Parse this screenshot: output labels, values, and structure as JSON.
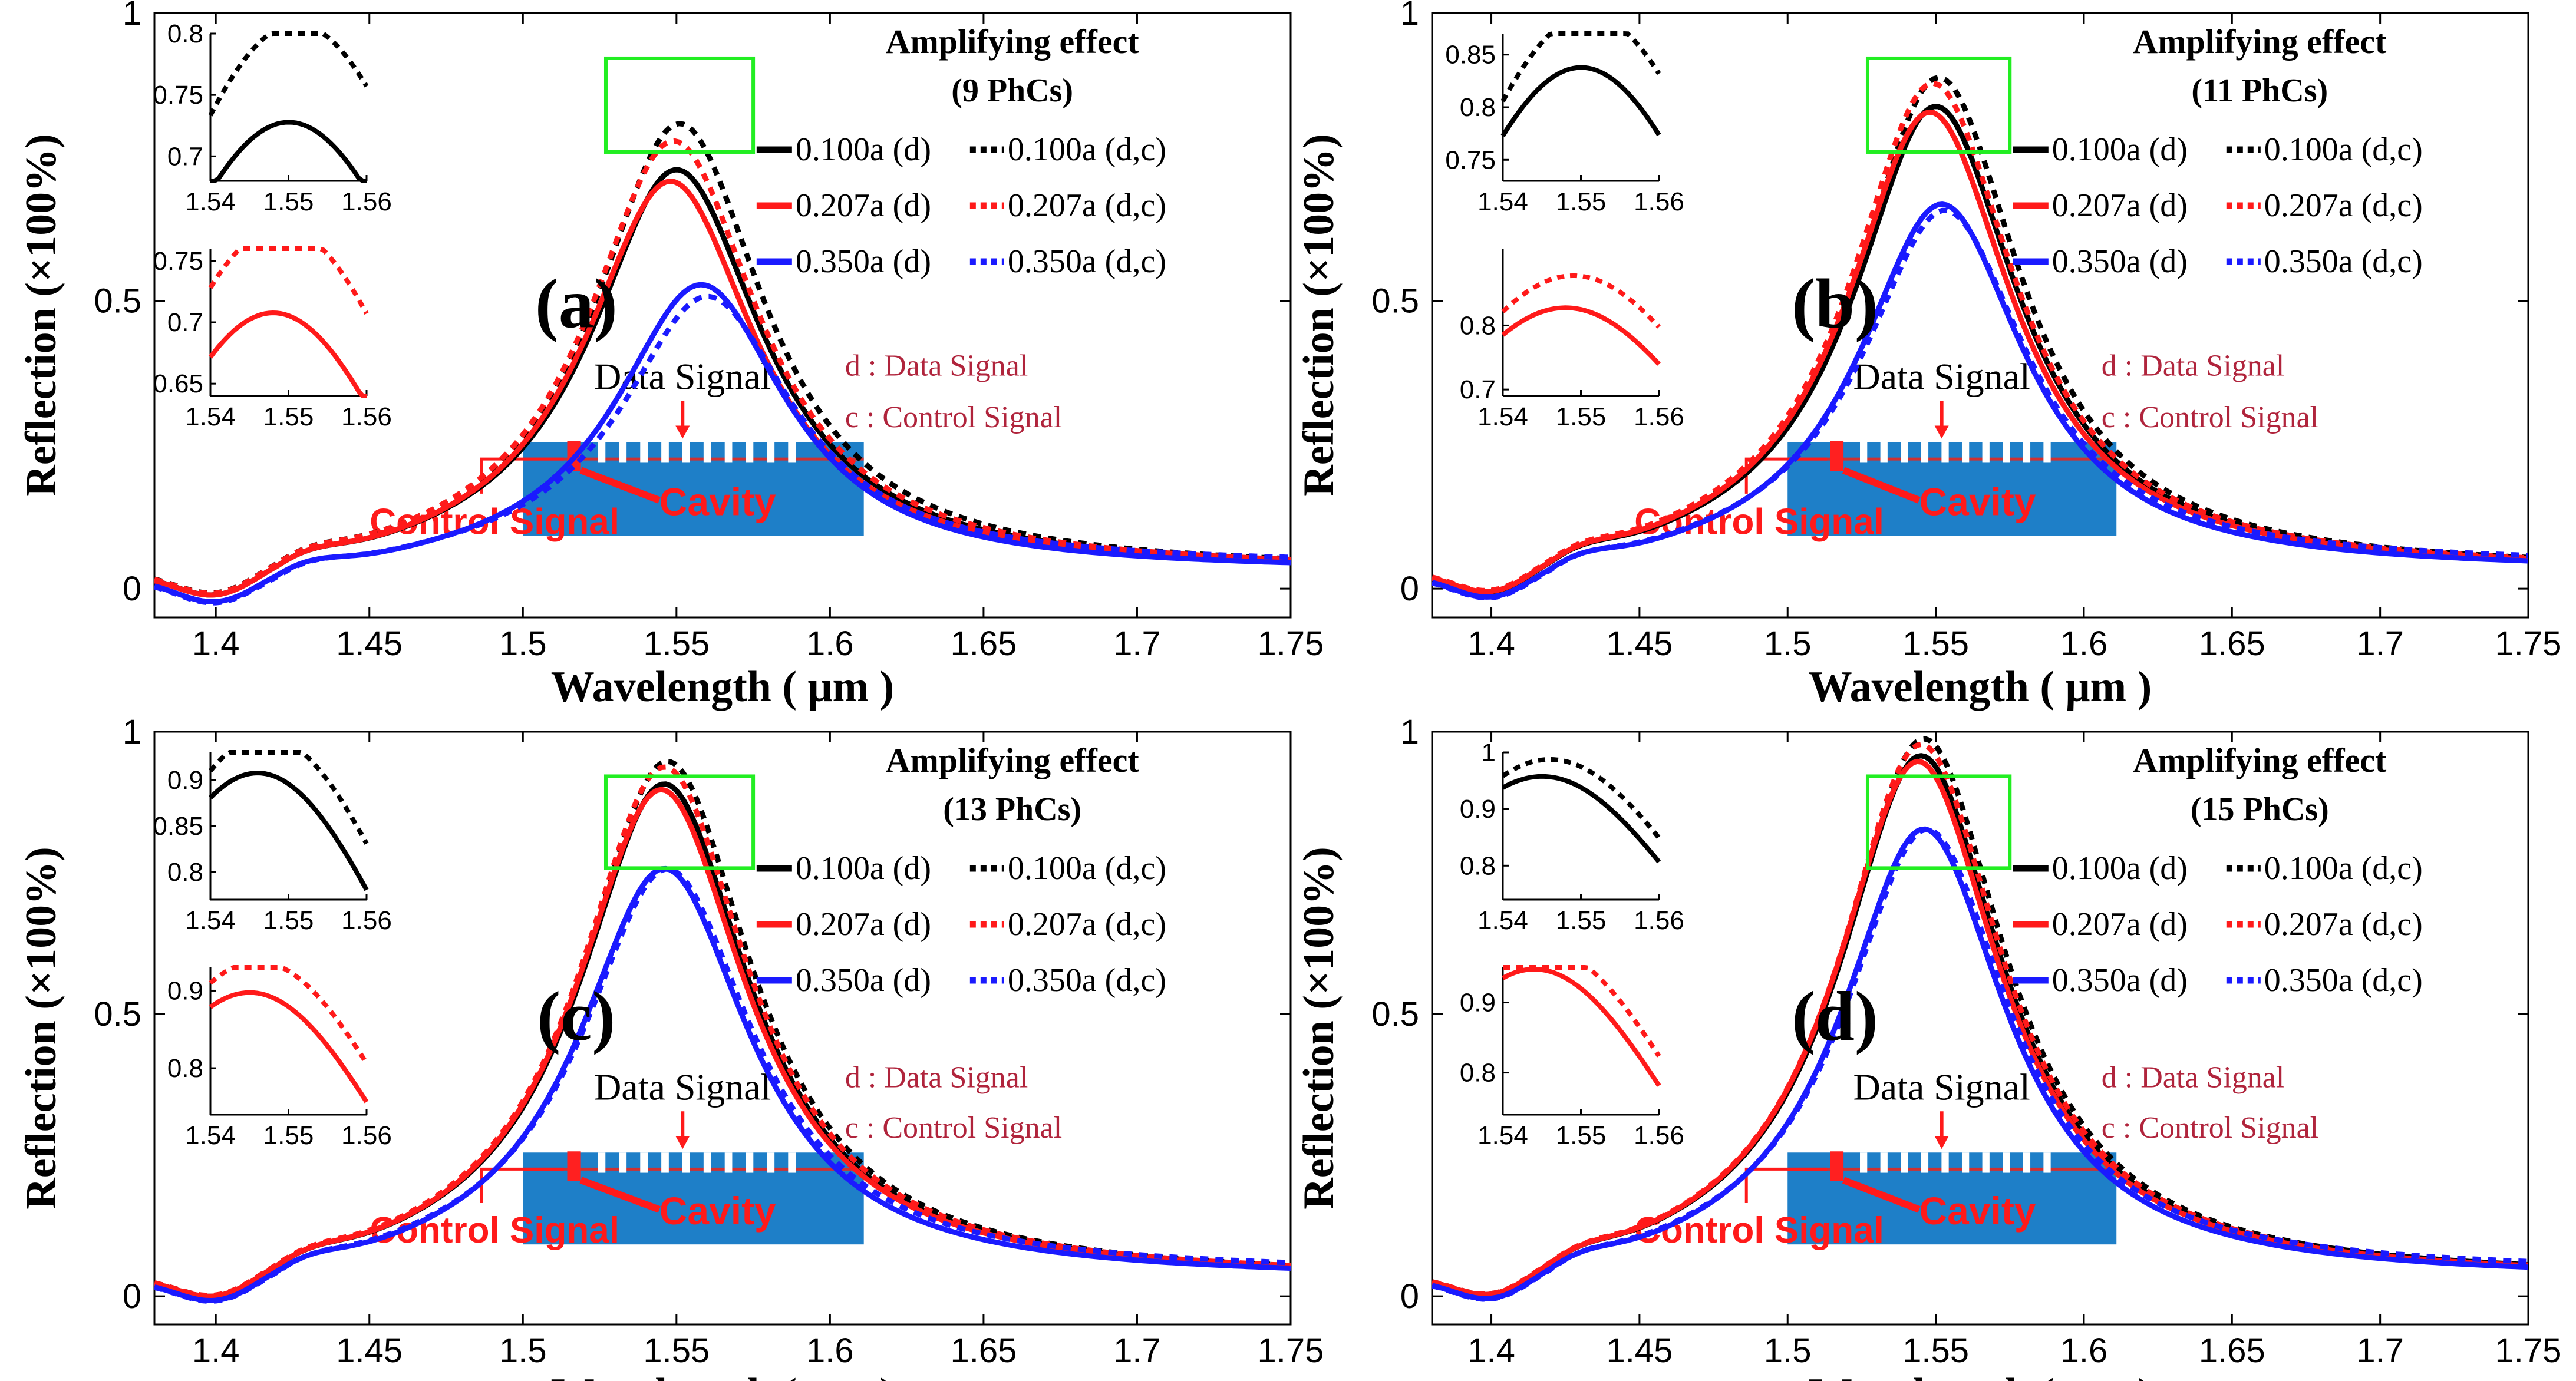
{
  "common": {
    "xlabel": "Wavelength ( μm )",
    "ylabel": "Reflection (×100%)",
    "xlim": [
      1.38,
      1.75
    ],
    "ylim": [
      -0.05,
      1.0
    ],
    "xticks": [
      1.4,
      1.45,
      1.5,
      1.55,
      1.6,
      1.65,
      1.7,
      1.75
    ],
    "xtick_labels": [
      "1.4",
      "1.45",
      "1.5",
      "1.55",
      "1.6",
      "1.65",
      "1.7",
      "1.75"
    ],
    "yticks": [
      0,
      0.5,
      1
    ],
    "ytick_labels": [
      "0",
      "0.5",
      "1"
    ],
    "note_d": "d : Data Signal",
    "note_c": "c : Control Signal",
    "schematic": {
      "data_signal": "Data Signal",
      "control_signal": "Control Signal",
      "cavity": "Cavity"
    },
    "inset_xticks": [
      1.54,
      1.55,
      1.56
    ],
    "inset_xtick_labels": [
      "1.54",
      "1.55",
      "1.56"
    ],
    "colors": {
      "black": "#000000",
      "red": "#ff1a1a",
      "blue": "#1a1aff",
      "box": "#22ee22",
      "note": "#b0243c",
      "device": "#1e7fc8"
    }
  },
  "chart_data": [
    {
      "type": "line",
      "id": "a",
      "panel_label": "(a)",
      "title": "Amplifying effect",
      "subtitle": "(9 PhCs)",
      "series": [
        {
          "name": "0.100a (d)",
          "label": "0.100a (d)",
          "color": "black",
          "dash": false,
          "peak": 0.7,
          "center": 1.55,
          "base": 0.03
        },
        {
          "name": "0.100a (d,c)",
          "label": "0.100a (d,c)",
          "color": "black",
          "dash": true,
          "peak": 0.78,
          "center": 1.551,
          "base": 0.03
        },
        {
          "name": "0.207a (d)",
          "label": "0.207a (d)",
          "color": "red",
          "dash": false,
          "peak": 0.68,
          "center": 1.548,
          "base": 0.03
        },
        {
          "name": "0.207a (d,c)",
          "label": "0.207a (d,c)",
          "color": "red",
          "dash": true,
          "peak": 0.75,
          "center": 1.549,
          "base": 0.03
        },
        {
          "name": "0.350a (d)",
          "label": "0.350a (d)",
          "color": "blue",
          "dash": false,
          "peak": 0.5,
          "center": 1.558,
          "base": 0.03
        },
        {
          "name": "0.350a (d,c)",
          "label": "0.350a (d,c)",
          "color": "blue",
          "dash": true,
          "peak": 0.47,
          "center": 1.56,
          "base": 0.04
        }
      ],
      "insets": [
        {
          "ylim": [
            0.68,
            0.8
          ],
          "yticks": [
            0.7,
            0.75,
            0.8
          ],
          "ytick_labels": [
            "0.7",
            "0.75",
            "0.8"
          ]
        },
        {
          "ylim": [
            0.64,
            0.76
          ],
          "yticks": [
            0.65,
            0.7,
            0.75
          ],
          "ytick_labels": [
            "0.65",
            "0.7",
            "0.75"
          ]
        }
      ]
    },
    {
      "type": "line",
      "id": "b",
      "panel_label": "(b)",
      "title": "Amplifying effect",
      "subtitle": "(11 PhCs)",
      "series": [
        {
          "name": "0.100a (d)",
          "label": "0.100a (d)",
          "color": "black",
          "dash": false,
          "peak": 0.81,
          "center": 1.55,
          "base": 0.03
        },
        {
          "name": "0.100a (d,c)",
          "label": "0.100a (d,c)",
          "color": "black",
          "dash": true,
          "peak": 0.86,
          "center": 1.551,
          "base": 0.03
        },
        {
          "name": "0.207a (d)",
          "label": "0.207a (d)",
          "color": "red",
          "dash": false,
          "peak": 0.8,
          "center": 1.548,
          "base": 0.03
        },
        {
          "name": "0.207a (d,c)",
          "label": "0.207a (d,c)",
          "color": "red",
          "dash": true,
          "peak": 0.85,
          "center": 1.549,
          "base": 0.03
        },
        {
          "name": "0.350a (d)",
          "label": "0.350a (d)",
          "color": "blue",
          "dash": false,
          "peak": 0.64,
          "center": 1.552,
          "base": 0.03
        },
        {
          "name": "0.350a (d,c)",
          "label": "0.350a (d,c)",
          "color": "blue",
          "dash": true,
          "peak": 0.62,
          "center": 1.553,
          "base": 0.04
        }
      ],
      "insets": [
        {
          "ylim": [
            0.73,
            0.87
          ],
          "yticks": [
            0.75,
            0.8,
            0.85
          ],
          "ytick_labels": [
            "0.75",
            "0.8",
            "0.85"
          ]
        },
        {
          "ylim": [
            0.69,
            0.92
          ],
          "yticks": [
            0.7,
            0.8
          ],
          "ytick_labels": [
            "0.7",
            "0.8"
          ]
        }
      ]
    },
    {
      "type": "line",
      "id": "c",
      "panel_label": "(c)",
      "title": "Amplifying effect",
      "subtitle": "(13 PhCs)",
      "series": [
        {
          "name": "0.100a (d)",
          "label": "0.100a (d)",
          "color": "black",
          "dash": false,
          "peak": 0.88,
          "center": 1.546,
          "base": 0.03
        },
        {
          "name": "0.100a (d,c)",
          "label": "0.100a (d,c)",
          "color": "black",
          "dash": true,
          "peak": 0.92,
          "center": 1.547,
          "base": 0.03
        },
        {
          "name": "0.207a (d)",
          "label": "0.207a (d)",
          "color": "red",
          "dash": false,
          "peak": 0.87,
          "center": 1.545,
          "base": 0.03
        },
        {
          "name": "0.207a (d,c)",
          "label": "0.207a (d,c)",
          "color": "red",
          "dash": true,
          "peak": 0.91,
          "center": 1.546,
          "base": 0.03
        },
        {
          "name": "0.350a (d)",
          "label": "0.350a (d)",
          "color": "blue",
          "dash": false,
          "peak": 0.73,
          "center": 1.546,
          "base": 0.03
        },
        {
          "name": "0.350a (d,c)",
          "label": "0.350a (d,c)",
          "color": "blue",
          "dash": true,
          "peak": 0.72,
          "center": 1.547,
          "base": 0.04
        }
      ],
      "insets": [
        {
          "ylim": [
            0.77,
            0.93
          ],
          "yticks": [
            0.8,
            0.85,
            0.9
          ],
          "ytick_labels": [
            "0.8",
            "0.85",
            "0.9"
          ]
        },
        {
          "ylim": [
            0.74,
            0.93
          ],
          "yticks": [
            0.8,
            0.9
          ],
          "ytick_labels": [
            "0.8",
            "0.9"
          ]
        }
      ]
    },
    {
      "type": "line",
      "id": "d",
      "panel_label": "(d)",
      "title": "Amplifying effect",
      "subtitle": "(15 PhCs)",
      "series": [
        {
          "name": "0.100a (d)",
          "label": "0.100a (d)",
          "color": "black",
          "dash": false,
          "peak": 0.93,
          "center": 1.545,
          "base": 0.03
        },
        {
          "name": "0.100a (d,c)",
          "label": "0.100a (d,c)",
          "color": "black",
          "dash": true,
          "peak": 0.96,
          "center": 1.546,
          "base": 0.03
        },
        {
          "name": "0.207a (d)",
          "label": "0.207a (d)",
          "color": "red",
          "dash": false,
          "peak": 0.92,
          "center": 1.544,
          "base": 0.03
        },
        {
          "name": "0.207a (d,c)",
          "label": "0.207a (d,c)",
          "color": "red",
          "dash": true,
          "peak": 0.95,
          "center": 1.545,
          "base": 0.03
        },
        {
          "name": "0.350a (d)",
          "label": "0.350a (d)",
          "color": "blue",
          "dash": false,
          "peak": 0.8,
          "center": 1.546,
          "base": 0.03
        },
        {
          "name": "0.350a (d,c)",
          "label": "0.350a (d,c)",
          "color": "blue",
          "dash": true,
          "peak": 0.79,
          "center": 1.547,
          "base": 0.04
        }
      ],
      "insets": [
        {
          "ylim": [
            0.74,
            1.0
          ],
          "yticks": [
            0.8,
            0.9,
            1
          ],
          "ytick_labels": [
            "0.8",
            "0.9",
            "1"
          ]
        },
        {
          "ylim": [
            0.74,
            0.95
          ],
          "yticks": [
            0.8,
            0.9
          ],
          "ytick_labels": [
            "0.8",
            "0.9"
          ]
        }
      ]
    }
  ]
}
